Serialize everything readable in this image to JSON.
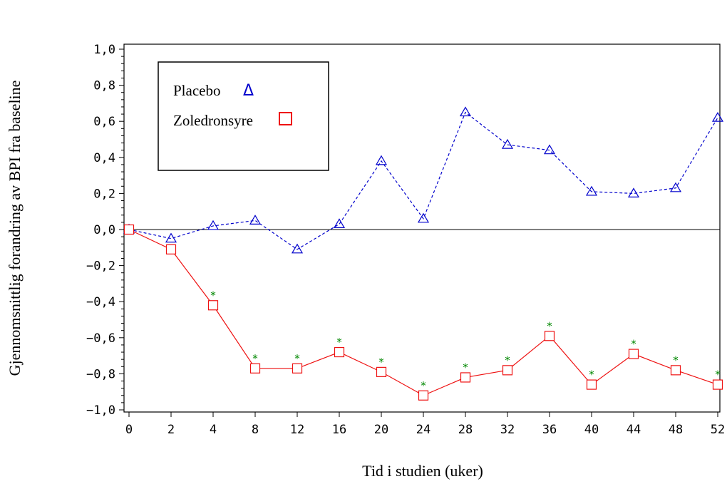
{
  "chart_data": {
    "type": "line",
    "ylabel": "Gjennomsnittlig forandring av BPI fra baseline",
    "xlabel": "Tid i studien (uker)",
    "categories": [
      "0",
      "2",
      "4",
      "8",
      "12",
      "16",
      "20",
      "24",
      "28",
      "32",
      "36",
      "40",
      "44",
      "48",
      "52"
    ],
    "y_ticks": [
      "1,0",
      "0,8",
      "0,6",
      "0,4",
      "0,2",
      "0,0",
      "−0,2",
      "−0,4",
      "−0,6",
      "−0,8",
      "−1,0"
    ],
    "y_tick_values": [
      1.0,
      0.8,
      0.6,
      0.4,
      0.2,
      0.0,
      -0.2,
      -0.4,
      -0.6,
      -0.8,
      -1.0
    ],
    "ylim": [
      -1.0,
      1.0
    ],
    "grid": false,
    "legend_position": "top-left",
    "zero_line": true,
    "series": [
      {
        "name": "Placebo",
        "marker": "triangle",
        "line_style": "dashed",
        "color": "#0000cc",
        "values": [
          0.0,
          -0.05,
          0.02,
          0.05,
          -0.11,
          0.03,
          0.38,
          0.06,
          0.65,
          0.47,
          0.44,
          0.21,
          0.2,
          0.23,
          0.62
        ]
      },
      {
        "name": "Zoledronsyre",
        "marker": "square",
        "line_style": "solid",
        "color": "#ee1111",
        "values": [
          0.0,
          -0.11,
          -0.42,
          -0.77,
          -0.77,
          -0.68,
          -0.79,
          -0.92,
          -0.82,
          -0.78,
          -0.59,
          -0.86,
          -0.69,
          -0.78,
          -0.86
        ],
        "significance_marker": "*",
        "significance_color": "#008800",
        "significant": [
          false,
          false,
          true,
          true,
          true,
          true,
          true,
          true,
          true,
          true,
          true,
          true,
          true,
          true,
          true
        ]
      }
    ]
  }
}
